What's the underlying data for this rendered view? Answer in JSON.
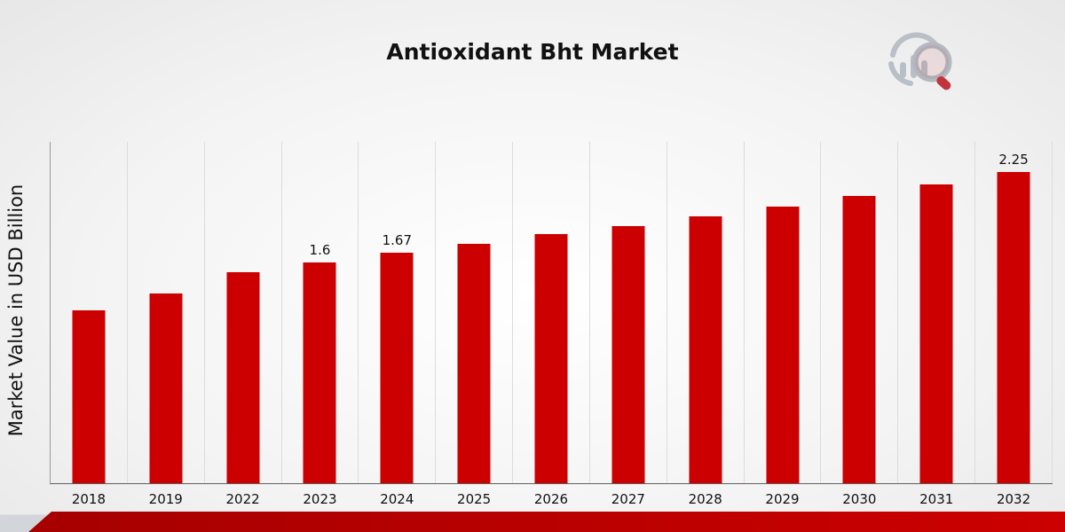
{
  "title": "Antioxidant Bht Market",
  "ylabel": "Market Value in USD Billion",
  "colors": {
    "bar": "#cc0001",
    "band_left": "#a50000",
    "band_right": "#cc0000",
    "logo_gray": "#b9bfc6",
    "logo_red": "#c2343c"
  },
  "chart_data": {
    "type": "bar",
    "title": "Antioxidant Bht Market",
    "xlabel": "",
    "ylabel": "Market Value in USD Billion",
    "categories": [
      "2018",
      "2019",
      "2022",
      "2023",
      "2024",
      "2025",
      "2026",
      "2027",
      "2028",
      "2029",
      "2030",
      "2031",
      "2032"
    ],
    "values": [
      1.25,
      1.37,
      1.53,
      1.6,
      1.67,
      1.73,
      1.8,
      1.86,
      1.93,
      2.0,
      2.08,
      2.16,
      2.25
    ],
    "bar_labels": [
      "",
      "",
      "",
      "1.6",
      "1.67",
      "",
      "",
      "",
      "",
      "",
      "",
      "",
      "2.25"
    ],
    "ylim": [
      0,
      2.47
    ],
    "grid": "vertical",
    "legend": "none"
  }
}
